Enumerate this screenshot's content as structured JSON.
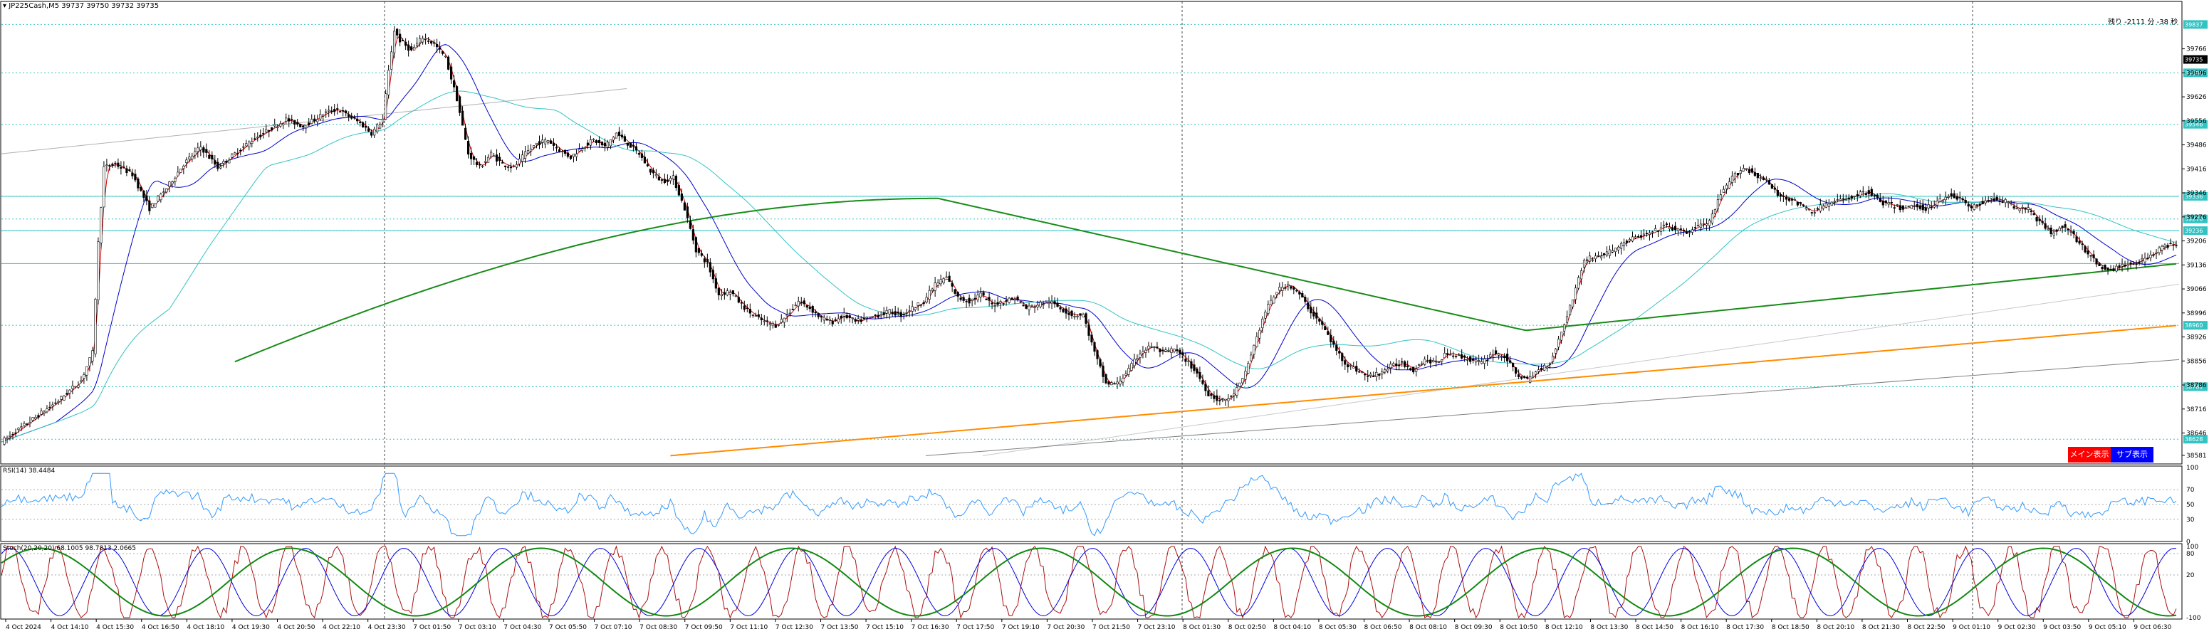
{
  "title": "JP225Cash,M5  39737 39750 39732 39735",
  "countdown": "残り -2111 分 -38 秒",
  "current_price": "39735",
  "buttons": {
    "main": "メイン表示",
    "sub": "サブ表示"
  },
  "rsi_label": "RSI(14) 38.4484",
  "stoch_label": "Stoch(20,20,20) 68.1005 98.7813 2.0665",
  "colors": {
    "candle": "#000000",
    "ma_fast": "#cc0000",
    "ma_mid": "#0000cc",
    "ma_slow": "#33c3c3",
    "ma_long": "#188c18",
    "ma_xlong": "#ff8c00",
    "hline": "#33c3c3",
    "rsi": "#3399ff",
    "stoch_red": "#aa1111",
    "stoch_blue": "#0000dd",
    "stoch_green": "#118811",
    "btn_main": "#ff0000",
    "btn_sub": "#0000ff"
  },
  "price_axis": [
    "39766",
    "39696",
    "39626",
    "39556",
    "39486",
    "39416",
    "39346",
    "39276",
    "39206",
    "39136",
    "39066",
    "38996",
    "38926",
    "38856",
    "38786",
    "38716",
    "38646",
    "38581"
  ],
  "price_badges": [
    {
      "price": "39837",
      "level": 39837
    },
    {
      "price": "39696",
      "level": 39696
    },
    {
      "price": "39546",
      "level": 39546
    },
    {
      "price": "39336",
      "level": 39336
    },
    {
      "price": "39270",
      "level": 39270
    },
    {
      "price": "39236",
      "level": 39236
    },
    {
      "price": "38960",
      "level": 38960
    },
    {
      "price": "38781",
      "level": 38781
    },
    {
      "price": "38628",
      "level": 38628
    }
  ],
  "rsi_axis": [
    "100",
    "70",
    "50",
    "30",
    "0"
  ],
  "stoch_axis": [
    "100",
    "80",
    "20",
    "-100"
  ],
  "time_axis": [
    "4 Oct 2024",
    "4 Oct 14:10",
    "4 Oct 15:30",
    "4 Oct 16:50",
    "4 Oct 18:10",
    "4 Oct 19:30",
    "4 Oct 20:50",
    "4 Oct 22:10",
    "4 Oct 23:30",
    "7 Oct 01:50",
    "7 Oct 03:10",
    "7 Oct 04:30",
    "7 Oct 05:50",
    "7 Oct 07:10",
    "7 Oct 08:30",
    "7 Oct 09:50",
    "7 Oct 11:10",
    "7 Oct 12:30",
    "7 Oct 13:50",
    "7 Oct 15:10",
    "7 Oct 16:30",
    "7 Oct 17:50",
    "7 Oct 19:10",
    "7 Oct 20:30",
    "7 Oct 21:50",
    "7 Oct 23:10",
    "8 Oct 01:30",
    "8 Oct 02:50",
    "8 Oct 04:10",
    "8 Oct 05:30",
    "8 Oct 06:50",
    "8 Oct 08:10",
    "8 Oct 09:30",
    "8 Oct 10:50",
    "8 Oct 12:10",
    "8 Oct 13:30",
    "8 Oct 14:50",
    "8 Oct 16:10",
    "8 Oct 17:30",
    "8 Oct 18:50",
    "8 Oct 20:10",
    "8 Oct 21:30",
    "8 Oct 22:50",
    "9 Oct 01:10",
    "9 Oct 02:30",
    "9 Oct 03:50",
    "9 Oct 05:10",
    "9 Oct 06:30"
  ],
  "chart_data": {
    "type": "candlestick",
    "instrument": "JP225Cash",
    "timeframe": "M5",
    "ylim": [
      38581,
      39900
    ],
    "close_path": [
      [
        0,
        38620
      ],
      [
        10,
        38680
      ],
      [
        20,
        38740
      ],
      [
        28,
        38800
      ],
      [
        32,
        38880
      ],
      [
        34,
        39200
      ],
      [
        36,
        39420
      ],
      [
        40,
        39430
      ],
      [
        46,
        39400
      ],
      [
        52,
        39300
      ],
      [
        58,
        39360
      ],
      [
        64,
        39430
      ],
      [
        70,
        39480
      ],
      [
        76,
        39420
      ],
      [
        82,
        39460
      ],
      [
        88,
        39500
      ],
      [
        94,
        39530
      ],
      [
        100,
        39560
      ],
      [
        106,
        39540
      ],
      [
        110,
        39560
      ],
      [
        114,
        39580
      ],
      [
        118,
        39590
      ],
      [
        122,
        39570
      ],
      [
        126,
        39550
      ],
      [
        130,
        39520
      ],
      [
        134,
        39560
      ],
      [
        136,
        39700
      ],
      [
        138,
        39820
      ],
      [
        140,
        39790
      ],
      [
        144,
        39760
      ],
      [
        148,
        39800
      ],
      [
        152,
        39780
      ],
      [
        156,
        39740
      ],
      [
        160,
        39620
      ],
      [
        164,
        39460
      ],
      [
        168,
        39420
      ],
      [
        172,
        39460
      ],
      [
        176,
        39430
      ],
      [
        180,
        39420
      ],
      [
        184,
        39460
      ],
      [
        188,
        39490
      ],
      [
        192,
        39500
      ],
      [
        196,
        39470
      ],
      [
        200,
        39450
      ],
      [
        204,
        39480
      ],
      [
        208,
        39500
      ],
      [
        212,
        39480
      ],
      [
        216,
        39520
      ],
      [
        220,
        39490
      ],
      [
        224,
        39460
      ],
      [
        228,
        39410
      ],
      [
        232,
        39380
      ],
      [
        236,
        39390
      ],
      [
        240,
        39300
      ],
      [
        244,
        39180
      ],
      [
        248,
        39140
      ],
      [
        252,
        39050
      ],
      [
        256,
        39060
      ],
      [
        260,
        39020
      ],
      [
        264,
        38990
      ],
      [
        268,
        38970
      ],
      [
        272,
        38960
      ],
      [
        276,
        38990
      ],
      [
        280,
        39030
      ],
      [
        284,
        39010
      ],
      [
        288,
        38980
      ],
      [
        292,
        38970
      ],
      [
        296,
        38990
      ],
      [
        300,
        38970
      ],
      [
        304,
        38980
      ],
      [
        308,
        38990
      ],
      [
        312,
        39000
      ],
      [
        316,
        38990
      ],
      [
        320,
        39010
      ],
      [
        324,
        39030
      ],
      [
        328,
        39080
      ],
      [
        332,
        39100
      ],
      [
        336,
        39040
      ],
      [
        340,
        39030
      ],
      [
        344,
        39050
      ],
      [
        348,
        39020
      ],
      [
        352,
        39030
      ],
      [
        356,
        39040
      ],
      [
        360,
        39010
      ],
      [
        364,
        39020
      ],
      [
        368,
        39030
      ],
      [
        372,
        39010
      ],
      [
        376,
        38990
      ],
      [
        380,
        38990
      ],
      [
        384,
        38880
      ],
      [
        388,
        38790
      ],
      [
        392,
        38790
      ],
      [
        396,
        38830
      ],
      [
        400,
        38880
      ],
      [
        404,
        38900
      ],
      [
        408,
        38880
      ],
      [
        412,
        38890
      ],
      [
        416,
        38860
      ],
      [
        420,
        38820
      ],
      [
        424,
        38760
      ],
      [
        428,
        38740
      ],
      [
        432,
        38750
      ],
      [
        436,
        38800
      ],
      [
        440,
        38900
      ],
      [
        444,
        39000
      ],
      [
        448,
        39060
      ],
      [
        452,
        39080
      ],
      [
        456,
        39050
      ],
      [
        460,
        39000
      ],
      [
        464,
        38960
      ],
      [
        468,
        38900
      ],
      [
        472,
        38850
      ],
      [
        476,
        38830
      ],
      [
        480,
        38810
      ],
      [
        484,
        38820
      ],
      [
        488,
        38840
      ],
      [
        492,
        38850
      ],
      [
        496,
        38830
      ],
      [
        500,
        38860
      ],
      [
        504,
        38850
      ],
      [
        508,
        38880
      ],
      [
        512,
        38870
      ],
      [
        516,
        38860
      ],
      [
        520,
        38850
      ],
      [
        524,
        38880
      ],
      [
        528,
        38870
      ],
      [
        532,
        38820
      ],
      [
        536,
        38800
      ],
      [
        540,
        38830
      ],
      [
        544,
        38850
      ],
      [
        548,
        38940
      ],
      [
        552,
        39040
      ],
      [
        556,
        39150
      ],
      [
        560,
        39160
      ],
      [
        564,
        39170
      ],
      [
        568,
        39190
      ],
      [
        572,
        39210
      ],
      [
        576,
        39220
      ],
      [
        580,
        39230
      ],
      [
        584,
        39250
      ],
      [
        588,
        39240
      ],
      [
        592,
        39230
      ],
      [
        596,
        39250
      ],
      [
        600,
        39260
      ],
      [
        604,
        39340
      ],
      [
        608,
        39390
      ],
      [
        612,
        39420
      ],
      [
        616,
        39400
      ],
      [
        620,
        39380
      ],
      [
        624,
        39340
      ],
      [
        628,
        39330
      ],
      [
        632,
        39310
      ],
      [
        636,
        39290
      ],
      [
        640,
        39310
      ],
      [
        644,
        39320
      ],
      [
        648,
        39330
      ],
      [
        652,
        39340
      ],
      [
        656,
        39350
      ],
      [
        660,
        39320
      ],
      [
        664,
        39310
      ],
      [
        668,
        39300
      ],
      [
        672,
        39310
      ],
      [
        676,
        39300
      ],
      [
        680,
        39320
      ],
      [
        684,
        39340
      ],
      [
        688,
        39330
      ],
      [
        692,
        39300
      ],
      [
        696,
        39320
      ],
      [
        700,
        39330
      ],
      [
        704,
        39320
      ],
      [
        708,
        39300
      ],
      [
        712,
        39300
      ],
      [
        716,
        39260
      ],
      [
        720,
        39230
      ],
      [
        724,
        39250
      ],
      [
        728,
        39220
      ],
      [
        732,
        39180
      ],
      [
        736,
        39140
      ],
      [
        740,
        39120
      ],
      [
        744,
        39130
      ],
      [
        748,
        39140
      ],
      [
        752,
        39150
      ],
      [
        756,
        39170
      ],
      [
        760,
        39190
      ],
      [
        764,
        39200
      ]
    ]
  }
}
